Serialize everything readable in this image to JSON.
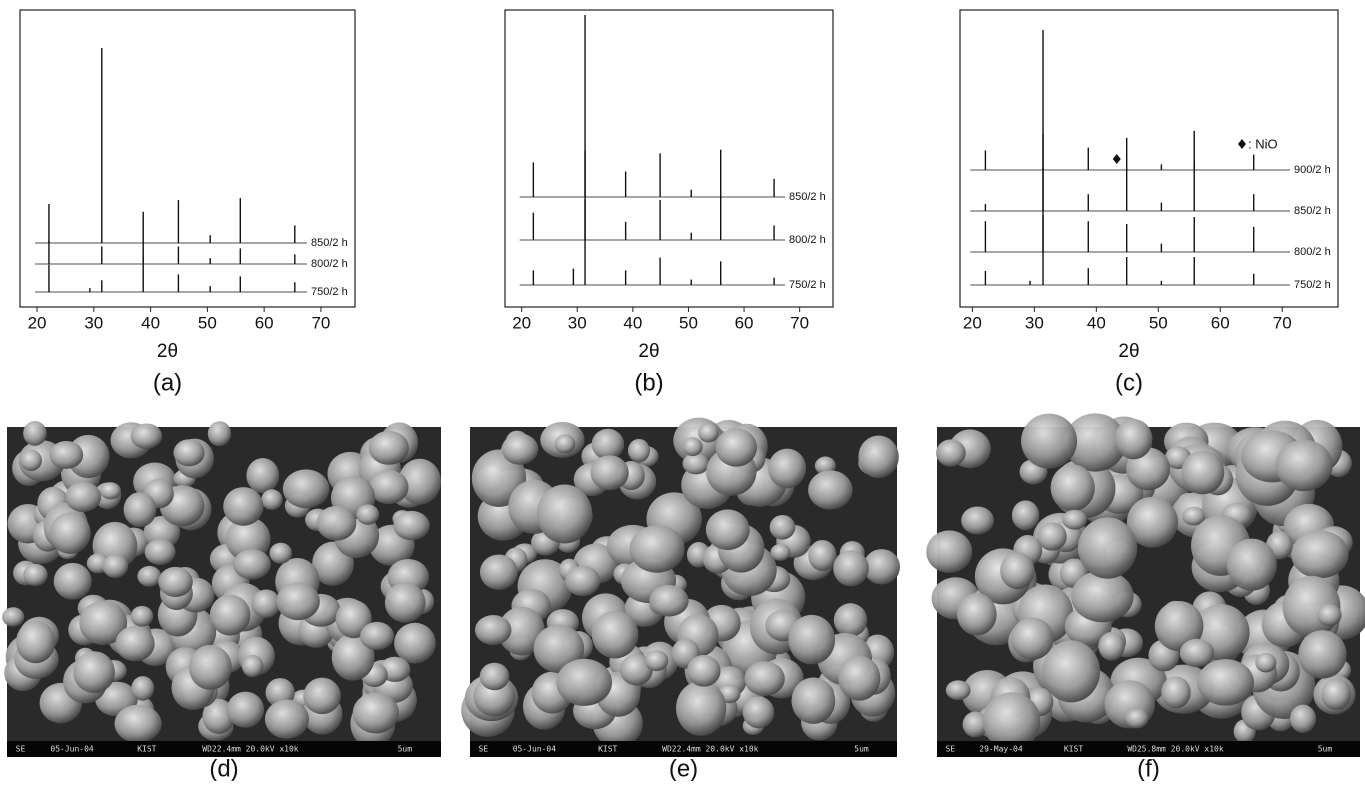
{
  "chart_data": [
    {
      "type": "line",
      "xlabel": "2θ",
      "caption": "(a)",
      "xlim": [
        17,
        76
      ],
      "xticks": [
        20,
        30,
        40,
        50,
        60,
        70
      ],
      "x": [
        22.1,
        29.3,
        31.4,
        38.7,
        44.9,
        50.5,
        55.8,
        65.4
      ],
      "series": [
        {
          "name": "850/2 h",
          "color": "#111111",
          "values": [
            20,
            0,
            100,
            16,
            22,
            4,
            23,
            9
          ]
        },
        {
          "name": "800/2 h",
          "color": "#111111",
          "values": [
            12,
            0,
            9,
            11,
            9,
            3,
            8,
            5
          ]
        },
        {
          "name": "750/2 h",
          "color": "#111111",
          "values": [
            14,
            2,
            6,
            18,
            9,
            3,
            8,
            5
          ]
        }
      ]
    },
    {
      "type": "line",
      "xlabel": "2θ",
      "caption": "(b)",
      "xlim": [
        17,
        76
      ],
      "xticks": [
        20,
        30,
        40,
        50,
        60,
        70
      ],
      "x": [
        22.1,
        29.3,
        31.4,
        38.7,
        44.9,
        50.5,
        55.8,
        65.4
      ],
      "series": [
        {
          "name": "850/2 h",
          "color": "#111111",
          "values": [
            19,
            0,
            100,
            14,
            24,
            4,
            26,
            10
          ]
        },
        {
          "name": "800/2 h",
          "color": "#111111",
          "values": [
            15,
            0,
            49,
            10,
            22,
            4,
            24,
            8
          ]
        },
        {
          "name": "750/2 h",
          "color": "#111111",
          "values": [
            8,
            9,
            47,
            8,
            15,
            3,
            13,
            4
          ]
        }
      ]
    },
    {
      "type": "line",
      "xlabel": "2θ",
      "caption": "(c)",
      "xlim": [
        18,
        79
      ],
      "xticks": [
        20,
        30,
        40,
        50,
        60,
        70
      ],
      "x": [
        22.1,
        29.3,
        31.4,
        38.7,
        44.9,
        50.5,
        55.8,
        65.4
      ],
      "annotation": ": NiO",
      "marker_x": 43.3,
      "series": [
        {
          "name": "900/2 h",
          "color": "#111111",
          "values": [
            14,
            0,
            100,
            16,
            23,
            4,
            28,
            11
          ]
        },
        {
          "name": "850/2 h",
          "color": "#111111",
          "values": [
            5,
            0,
            55,
            12,
            30,
            6,
            35,
            12
          ]
        },
        {
          "name": "800/2 h",
          "color": "#111111",
          "values": [
            22,
            0,
            60,
            22,
            20,
            6,
            25,
            18
          ]
        },
        {
          "name": "750/2 h",
          "color": "#111111",
          "values": [
            10,
            3,
            50,
            12,
            20,
            3,
            20,
            8
          ]
        }
      ]
    }
  ],
  "images": [
    {
      "caption": "(d)",
      "info": [
        "SE",
        "05-Jun-04",
        "KIST",
        "WD22.4mm 20.0kV x10k",
        "5um"
      ]
    },
    {
      "caption": "(e)",
      "info": [
        "SE",
        "05-Jun-04",
        "KIST",
        "WD22.4mm 20.0kV x10k",
        "5um"
      ]
    },
    {
      "caption": "(f)",
      "info": [
        "SE",
        "29-May-04",
        "KIST",
        "WD25.8mm 20.0kV x10k",
        "5um"
      ]
    }
  ]
}
